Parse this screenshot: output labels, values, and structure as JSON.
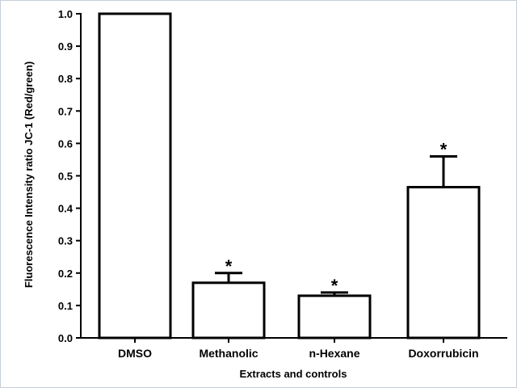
{
  "chart_data": {
    "type": "bar",
    "categories": [
      "DMSO",
      "Methanolic",
      "n-Hexane",
      "Doxorrubicin"
    ],
    "values": [
      1.0,
      0.17,
      0.13,
      0.465
    ],
    "errors": [
      0,
      0.03,
      0.01,
      0.095
    ],
    "significance": [
      "",
      "*",
      "*",
      "*"
    ],
    "xlabel": "Extracts and controls",
    "ylabel": "Fluorescence Intensity ratio JC-1 (Red/green)",
    "ylim": [
      0,
      1.0
    ],
    "yticks": [
      0.0,
      0.1,
      0.2,
      0.3,
      0.4,
      0.5,
      0.6,
      0.7,
      0.8,
      0.9,
      1.0
    ],
    "ytick_labels": [
      "0.0",
      "0.1",
      "0.2",
      "0.3",
      "0.4",
      "0.5",
      "0.6",
      "0.7",
      "0.8",
      "0.9",
      "1.0"
    ],
    "bar_fill": "#ffffff",
    "bar_stroke": "#000000",
    "grid": false,
    "legend": "none"
  }
}
